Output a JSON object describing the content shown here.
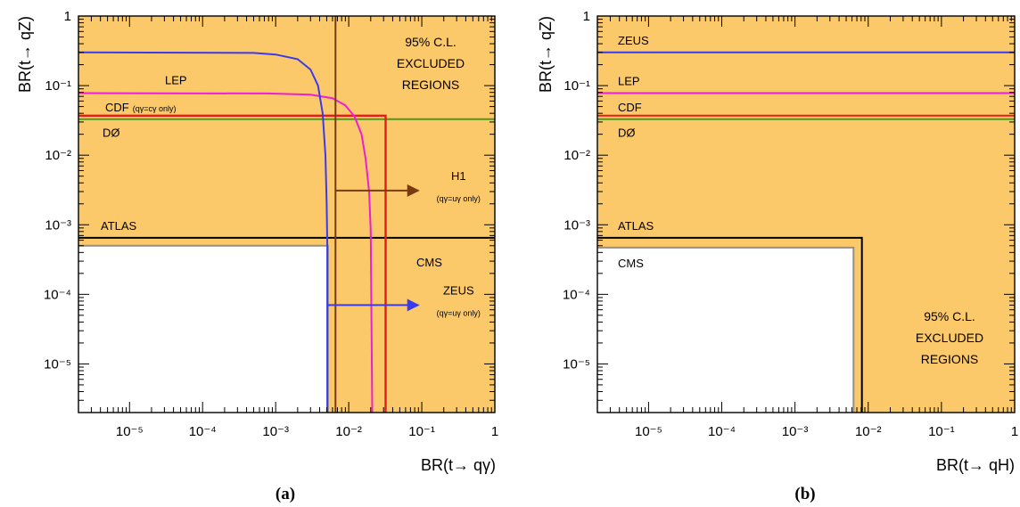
{
  "chart_data": [
    {
      "type": "line",
      "panel_label": "(a)",
      "xlabel": "BR(t→ qγ)",
      "ylabel": "BR(t→ qZ)",
      "xscale": "log",
      "yscale": "log",
      "xlim": [
        2e-06,
        1
      ],
      "ylim": [
        2e-06,
        1
      ],
      "x_tick_labels": [
        "10⁻⁵",
        "10⁻⁴",
        "10⁻³",
        "10⁻²",
        "10⁻¹",
        "1"
      ],
      "y_tick_labels": [
        "10⁻⁵",
        "10⁻⁴",
        "10⁻³",
        "10⁻²",
        "10⁻¹",
        "1"
      ],
      "excluded_fill_color": "#fcc96a",
      "excluded_text": [
        "95% C.L.",
        "EXCLUDED",
        "REGIONS"
      ],
      "series": [
        {
          "name": "CMS",
          "color": "#909090",
          "points": [
            [
              2e-06,
              0.0005
            ],
            [
              0.0052,
              0.0005
            ],
            [
              0.0052,
              2e-06
            ]
          ]
        },
        {
          "name": "ATLAS",
          "color": "#000000",
          "points": [
            [
              2e-06,
              0.00065
            ],
            [
              1,
              0.00065
            ]
          ]
        },
        {
          "name": "DØ",
          "color": "#4a9a18",
          "points": [
            [
              2e-06,
              0.033
            ],
            [
              1,
              0.033
            ]
          ]
        },
        {
          "name": "CDF",
          "sublabel": "(qγ=cγ only)",
          "color": "#e61b1b",
          "points": [
            [
              2e-06,
              0.037
            ],
            [
              0.032,
              0.037
            ],
            [
              0.032,
              2e-06
            ]
          ]
        },
        {
          "name": "LEP",
          "color": "#ec1fd4",
          "points": [
            [
              2e-06,
              0.078
            ],
            [
              0.0008,
              0.077
            ],
            [
              0.003,
              0.074
            ],
            [
              0.006,
              0.066
            ],
            [
              0.009,
              0.052
            ],
            [
              0.012,
              0.036
            ],
            [
              0.015,
              0.02
            ],
            [
              0.017,
              0.009
            ],
            [
              0.019,
              0.003
            ],
            [
              0.02,
              0.0008
            ],
            [
              0.021,
              2e-06
            ]
          ]
        },
        {
          "name": "",
          "color": "#3b3bee",
          "points": [
            [
              2e-06,
              0.3
            ],
            [
              0.0005,
              0.295
            ],
            [
              0.001,
              0.28
            ],
            [
              0.002,
              0.24
            ],
            [
              0.003,
              0.17
            ],
            [
              0.0038,
              0.1
            ],
            [
              0.0044,
              0.04
            ],
            [
              0.0048,
              0.01
            ],
            [
              0.005,
              0.002
            ],
            [
              0.0051,
              0.0005
            ],
            [
              0.0051,
              2e-06
            ]
          ]
        },
        {
          "name": "",
          "color": "#7a3b12",
          "points": [
            [
              0.0066,
              1
            ],
            [
              0.0066,
              2e-06
            ]
          ]
        }
      ],
      "arrows": [
        {
          "label": "H1",
          "sublabel": "(qγ=uγ only)",
          "color": "#7a3b12",
          "from": [
            0.0066,
            0.0031
          ],
          "to": [
            0.09,
            0.0031
          ]
        },
        {
          "label": "ZEUS",
          "sublabel": "(qγ=uγ only)",
          "color": "#3b3bee",
          "from": [
            0.0051,
            7e-05
          ],
          "to": [
            0.09,
            7e-05
          ]
        }
      ],
      "labels": [
        {
          "text": "LEP",
          "color": "#ec1fd4"
        },
        {
          "text": "CDF",
          "sub": "(qγ=cγ only)",
          "color": "#e61b1b"
        },
        {
          "text": "DØ",
          "color": "#4a9a18"
        },
        {
          "text": "ATLAS",
          "color": "#000000"
        },
        {
          "text": "CMS",
          "color": "#808080"
        }
      ]
    },
    {
      "type": "line",
      "panel_label": "(b)",
      "xlabel": "BR(t→ qH)",
      "ylabel": "BR(t→ qZ)",
      "xscale": "log",
      "yscale": "log",
      "xlim": [
        2e-06,
        1
      ],
      "ylim": [
        2e-06,
        1
      ],
      "x_tick_labels": [
        "10⁻⁵",
        "10⁻⁴",
        "10⁻³",
        "10⁻²",
        "10⁻¹",
        "1"
      ],
      "y_tick_labels": [
        "10⁻⁵",
        "10⁻⁴",
        "10⁻³",
        "10⁻²",
        "10⁻¹",
        "1"
      ],
      "excluded_fill_color": "#fcc96a",
      "excluded_text": [
        "95% C.L.",
        "EXCLUDED",
        "REGIONS"
      ],
      "series": [
        {
          "name": "ZEUS",
          "color": "#3b3bee",
          "points": [
            [
              2e-06,
              0.3
            ],
            [
              1,
              0.3
            ]
          ]
        },
        {
          "name": "LEP",
          "color": "#ec1fd4",
          "points": [
            [
              2e-06,
              0.078
            ],
            [
              1,
              0.078
            ]
          ]
        },
        {
          "name": "CDF",
          "color": "#e61b1b",
          "points": [
            [
              2e-06,
              0.037
            ],
            [
              1,
              0.037
            ]
          ]
        },
        {
          "name": "DØ",
          "color": "#4a9a18",
          "points": [
            [
              2e-06,
              0.033
            ],
            [
              1,
              0.033
            ]
          ]
        },
        {
          "name": "ATLAS",
          "color": "#000000",
          "points": [
            [
              2e-06,
              0.00065
            ],
            [
              0.0082,
              0.00065
            ],
            [
              0.0082,
              2e-06
            ]
          ]
        },
        {
          "name": "CMS",
          "color": "#909090",
          "points": [
            [
              2e-06,
              0.00047
            ],
            [
              0.0063,
              0.00047
            ],
            [
              0.0063,
              2e-06
            ]
          ]
        }
      ],
      "labels": [
        {
          "text": "ZEUS",
          "color": "#3b3bee"
        },
        {
          "text": "LEP",
          "color": "#ec1fd4"
        },
        {
          "text": "CDF",
          "color": "#e61b1b"
        },
        {
          "text": "DØ",
          "color": "#4a9a18"
        },
        {
          "text": "ATLAS",
          "color": "#000000"
        },
        {
          "text": "CMS",
          "color": "#000000"
        }
      ]
    }
  ]
}
